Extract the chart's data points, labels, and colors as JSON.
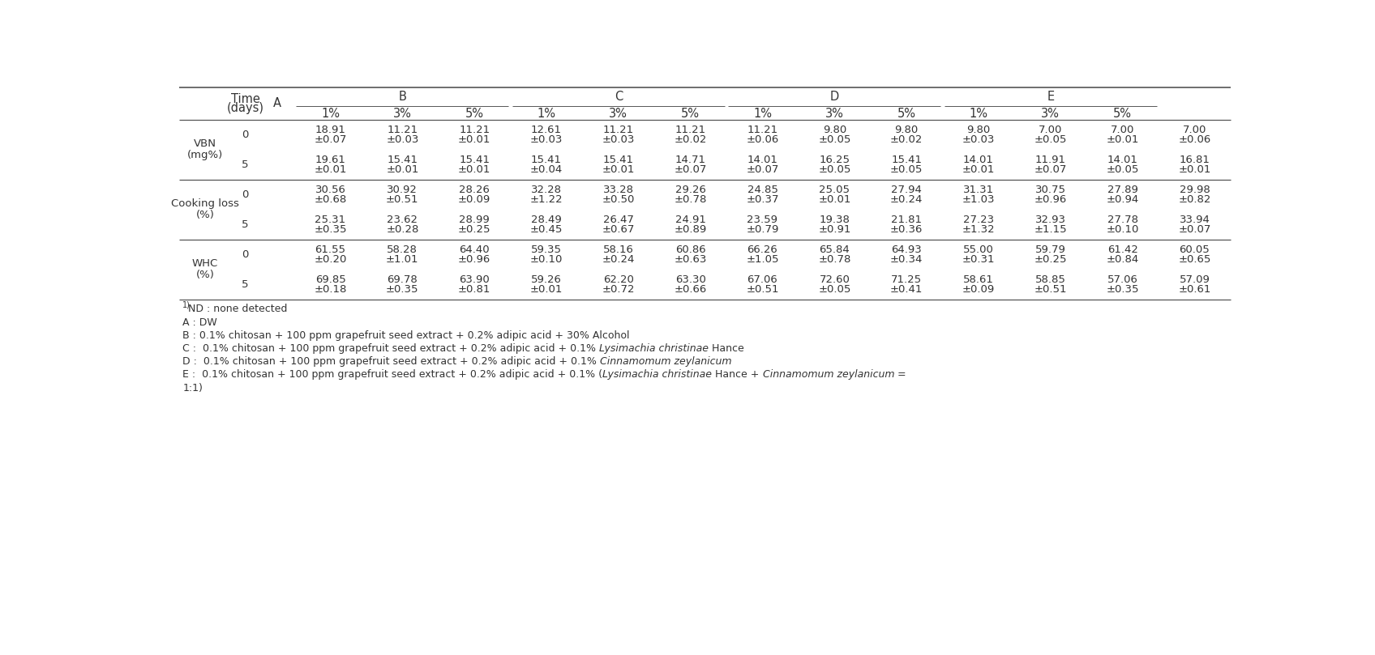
{
  "bg_color": "#ffffff",
  "text_color": "#333333",
  "header_groups": [
    "B",
    "C",
    "D",
    "E"
  ],
  "subheaders": [
    "1%",
    "3%",
    "5%",
    "1%",
    "3%",
    "5%",
    "1%",
    "3%",
    "5%",
    "1%",
    "3%",
    "5%"
  ],
  "table_data": {
    "VBN": {
      "rows": [
        {
          "time": "0",
          "values": [
            "18.91",
            "±0.07",
            "11.21",
            "±0.03",
            "11.21",
            "±0.01",
            "12.61",
            "±0.03",
            "11.21",
            "±0.03",
            "11.21",
            "±0.02",
            "11.21",
            "±0.06",
            "9.80",
            "±0.05",
            "9.80",
            "±0.02",
            "9.80",
            "±0.03",
            "7.00",
            "±0.05",
            "7.00",
            "±0.01",
            "7.00",
            "±0.06"
          ]
        },
        {
          "time": "5",
          "values": [
            "19.61",
            "±0.01",
            "15.41",
            "±0.01",
            "15.41",
            "±0.01",
            "15.41",
            "±0.04",
            "15.41",
            "±0.01",
            "14.71",
            "±0.07",
            "14.01",
            "±0.07",
            "16.25",
            "±0.05",
            "15.41",
            "±0.05",
            "14.01",
            "±0.01",
            "11.91",
            "±0.07",
            "14.01",
            "±0.05",
            "16.81",
            "±0.01"
          ]
        }
      ]
    },
    "Cooking_loss": {
      "rows": [
        {
          "time": "0",
          "values": [
            "30.56",
            "±0.68",
            "30.92",
            "±0.51",
            "28.26",
            "±0.09",
            "32.28",
            "±1.22",
            "33.28",
            "±0.50",
            "29.26",
            "±0.78",
            "24.85",
            "±0.37",
            "25.05",
            "±0.01",
            "27.94",
            "±0.24",
            "31.31",
            "±1.03",
            "30.75",
            "±0.96",
            "27.89",
            "±0.94",
            "29.98",
            "±0.82"
          ]
        },
        {
          "time": "5",
          "values": [
            "25.31",
            "±0.35",
            "23.62",
            "±0.28",
            "28.99",
            "±0.25",
            "28.49",
            "±0.45",
            "26.47",
            "±0.67",
            "24.91",
            "±0.89",
            "23.59",
            "±0.79",
            "19.38",
            "±0.91",
            "21.81",
            "±0.36",
            "27.23",
            "±1.32",
            "32.93",
            "±1.15",
            "27.78",
            "±0.10",
            "33.94",
            "±0.07"
          ]
        }
      ]
    },
    "WHC": {
      "rows": [
        {
          "time": "0",
          "values": [
            "61.55",
            "±0.20",
            "58.28",
            "±1.01",
            "64.40",
            "±0.96",
            "59.35",
            "±0.10",
            "58.16",
            "±0.24",
            "60.86",
            "±0.63",
            "66.26",
            "±1.05",
            "65.84",
            "±0.78",
            "64.93",
            "±0.34",
            "55.00",
            "±0.31",
            "59.79",
            "±0.25",
            "61.42",
            "±0.84",
            "60.05",
            "±0.65"
          ]
        },
        {
          "time": "5",
          "values": [
            "69.85",
            "±0.18",
            "69.78",
            "±0.35",
            "63.90",
            "±0.81",
            "59.26",
            "±0.01",
            "62.20",
            "±0.72",
            "63.30",
            "±0.66",
            "67.06",
            "±0.51",
            "72.60",
            "±0.05",
            "71.25",
            "±0.41",
            "58.61",
            "±0.09",
            "58.85",
            "±0.51",
            "57.06",
            "±0.35",
            "57.09",
            "±0.61"
          ]
        }
      ]
    }
  }
}
